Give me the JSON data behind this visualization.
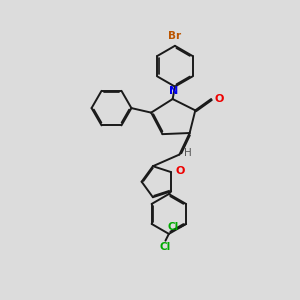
{
  "bg_color": "#dcdcdc",
  "bond_color": "#1a1a1a",
  "N_color": "#0000ee",
  "O_color": "#ee0000",
  "Br_color": "#bb5500",
  "Cl_color": "#00aa00",
  "H_color": "#555555",
  "lw": 1.4,
  "dbl_sep": 0.055,
  "xlim": [
    0,
    10
  ],
  "ylim": [
    0,
    13
  ]
}
